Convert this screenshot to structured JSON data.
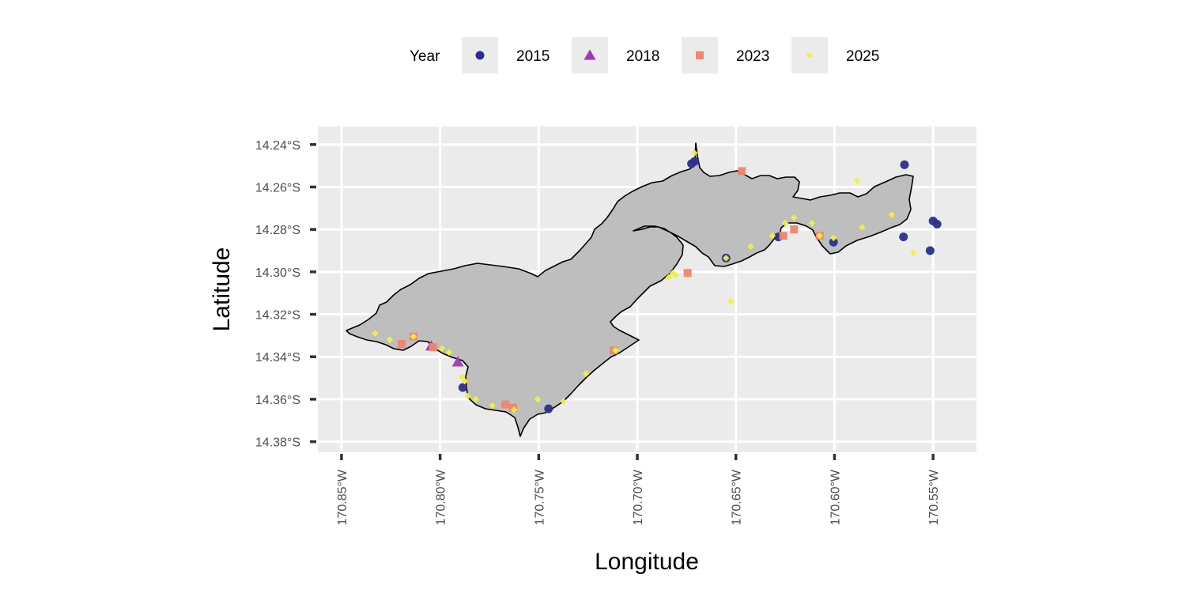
{
  "chart_data": {
    "type": "scatter",
    "title": "",
    "xlabel": "Longitude",
    "ylabel": "Latitude",
    "xlim": [
      -170.862,
      -170.528
    ],
    "ylim": [
      -14.385,
      -14.2315
    ],
    "x_ticks": [
      -170.85,
      -170.8,
      -170.75,
      -170.7,
      -170.65,
      -170.6,
      -170.55
    ],
    "x_tick_labels": [
      "170.85°W",
      "170.80°W",
      "170.75°W",
      "170.70°W",
      "170.65°W",
      "170.60°W",
      "170.55°W"
    ],
    "y_ticks": [
      -14.24,
      -14.26,
      -14.28,
      -14.3,
      -14.32,
      -14.34,
      -14.36,
      -14.38
    ],
    "y_tick_labels": [
      "14.24°S",
      "14.26°S",
      "14.28°S",
      "14.30°S",
      "14.32°S",
      "14.34°S",
      "14.36°S",
      "14.38°S"
    ],
    "grid": true,
    "legend_title": "Year",
    "legend_position": "top",
    "series": [
      {
        "name": "2015",
        "shape": "circle",
        "color": "#2c2e8f",
        "points": [
          [
            -170.6725,
            -14.249
          ],
          [
            -170.671,
            -14.248
          ],
          [
            -170.5645,
            -14.2495
          ],
          [
            -170.655,
            -14.2935
          ],
          [
            -170.6285,
            -14.2835
          ],
          [
            -170.6005,
            -14.286
          ],
          [
            -170.565,
            -14.2835
          ],
          [
            -170.5515,
            -14.29
          ],
          [
            -170.55,
            -14.276
          ],
          [
            -170.548,
            -14.2775
          ],
          [
            -170.7885,
            -14.3545
          ],
          [
            -170.745,
            -14.3645
          ]
        ]
      },
      {
        "name": "2018",
        "shape": "triangle",
        "color": "#a03ab0",
        "points": [
          [
            -170.8045,
            -14.335
          ],
          [
            -170.791,
            -14.3425
          ]
        ]
      },
      {
        "name": "2023",
        "shape": "square",
        "color": "#f0866d",
        "points": [
          [
            -170.647,
            -14.2525
          ],
          [
            -170.626,
            -14.283
          ],
          [
            -170.6205,
            -14.28
          ],
          [
            -170.6075,
            -14.283
          ],
          [
            -170.6745,
            -14.3005
          ],
          [
            -170.8195,
            -14.334
          ],
          [
            -170.8035,
            -14.3355
          ],
          [
            -170.8135,
            -14.3305
          ],
          [
            -170.767,
            -14.3625
          ],
          [
            -170.763,
            -14.364
          ],
          [
            -170.712,
            -14.337
          ]
        ]
      },
      {
        "name": "2025",
        "shape": "diamond",
        "color": "#f2f03c",
        "points": [
          [
            -170.671,
            -14.244
          ],
          [
            -170.5885,
            -14.257
          ],
          [
            -170.571,
            -14.273
          ],
          [
            -170.586,
            -14.279
          ],
          [
            -170.6115,
            -14.277
          ],
          [
            -170.6205,
            -14.2745
          ],
          [
            -170.625,
            -14.277
          ],
          [
            -170.6315,
            -14.283
          ],
          [
            -170.6075,
            -14.283
          ],
          [
            -170.6005,
            -14.284
          ],
          [
            -170.6425,
            -14.288
          ],
          [
            -170.655,
            -14.2935
          ],
          [
            -170.56,
            -14.291
          ],
          [
            -170.6525,
            -14.314
          ],
          [
            -170.682,
            -14.3005
          ],
          [
            -170.684,
            -14.3025
          ],
          [
            -170.6805,
            -14.3015
          ],
          [
            -170.833,
            -14.329
          ],
          [
            -170.8255,
            -14.332
          ],
          [
            -170.8135,
            -14.3305
          ],
          [
            -170.799,
            -14.336
          ],
          [
            -170.7955,
            -14.338
          ],
          [
            -170.789,
            -14.3495
          ],
          [
            -170.7875,
            -14.3515
          ],
          [
            -170.786,
            -14.3585
          ],
          [
            -170.782,
            -14.36
          ],
          [
            -170.7735,
            -14.363
          ],
          [
            -170.7625,
            -14.365
          ],
          [
            -170.7505,
            -14.36
          ],
          [
            -170.7375,
            -14.361
          ],
          [
            -170.726,
            -14.348
          ],
          [
            -170.711,
            -14.337
          ]
        ]
      }
    ]
  }
}
